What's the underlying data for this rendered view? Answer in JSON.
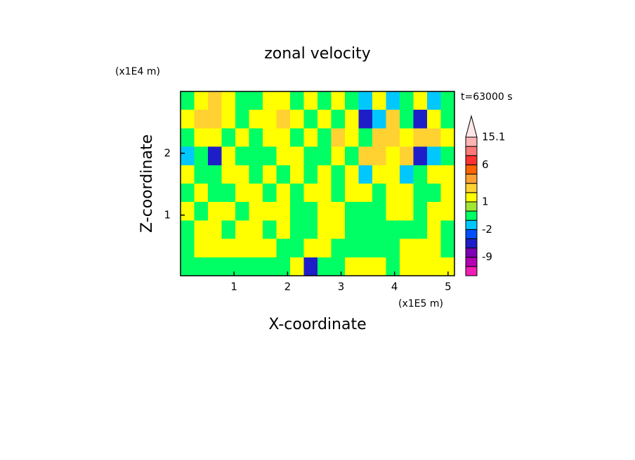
{
  "chart_data": {
    "type": "contour",
    "title": "zonal velocity",
    "subtitle": "t=63000 s",
    "x_label": "X-coordinate",
    "y_label": "Z-coordinate",
    "x_unit": "(x1E5 m)",
    "y_unit": "(x1E4 m)",
    "xlim": [
      0,
      5.12
    ],
    "ylim": [
      0.02,
      3.0
    ],
    "xticks": [
      1,
      2,
      3,
      4,
      5
    ],
    "yticks": [
      1,
      2
    ],
    "levels": [
      -12,
      -9,
      -6,
      -3,
      -2,
      -1,
      0,
      1,
      2,
      3,
      4.5,
      6,
      9,
      12,
      15.1
    ],
    "colors": [
      "#f01eb4",
      "#b400b4",
      "#7d00b4",
      "#1e1ec8",
      "#0050ff",
      "#00c8ff",
      "#00ff64",
      "#a0e632",
      "#ffff00",
      "#ffd232",
      "#ffa032",
      "#ff6400",
      "#ff3232",
      "#ff7878",
      "#ffb4b4",
      "#ffe6e6"
    ],
    "colorbar_ticks": [
      15.1,
      6,
      1,
      -2,
      -9
    ],
    "z": [
      [
        -0.5,
        1.5,
        2.5,
        1.5,
        -0.5,
        -0.5,
        1.5,
        1.5,
        -0.5,
        1.5,
        -0.5,
        1.5,
        -0.5,
        -1.5,
        1.5,
        -1.5,
        -0.5,
        1.5,
        -1.5,
        -0.5
      ],
      [
        1.5,
        2.5,
        2.5,
        1.5,
        -0.5,
        1.5,
        1.5,
        2.5,
        1.5,
        -0.5,
        1.5,
        -0.5,
        1.5,
        -4,
        -1.5,
        2.5,
        -0.5,
        -4,
        1.5,
        -0.5
      ],
      [
        -0.5,
        1.5,
        1.5,
        -0.5,
        1.5,
        -0.5,
        1.5,
        1.5,
        -0.5,
        1.5,
        -0.5,
        2.5,
        1.5,
        -0.5,
        2.5,
        2.5,
        1.5,
        2.5,
        2.5,
        1.5
      ],
      [
        -1.5,
        -0.5,
        -4,
        1.5,
        -0.5,
        -0.5,
        -0.5,
        1.5,
        1.5,
        -0.5,
        -0.5,
        1.5,
        -0.5,
        2.5,
        2.5,
        1.5,
        2.5,
        -4,
        -1.5,
        -0.5
      ],
      [
        1.5,
        -0.5,
        -0.5,
        1.5,
        1.5,
        -0.5,
        1.5,
        -0.5,
        1.5,
        -0.5,
        1.5,
        -0.5,
        1.5,
        -1.5,
        1.5,
        1.5,
        -1.5,
        -0.5,
        1.5,
        1.5
      ],
      [
        -0.5,
        1.5,
        -0.5,
        -0.5,
        1.5,
        1.5,
        -0.5,
        1.5,
        -0.5,
        1.5,
        1.5,
        -0.5,
        1.5,
        1.5,
        -0.5,
        1.5,
        1.5,
        -0.5,
        -0.5,
        1.5
      ],
      [
        1.5,
        -0.5,
        1.5,
        1.5,
        -0.5,
        1.5,
        1.5,
        1.5,
        -0.5,
        -0.5,
        1.5,
        1.5,
        -0.5,
        -0.5,
        -0.5,
        1.5,
        1.5,
        -0.5,
        1.5,
        1.5
      ],
      [
        -0.5,
        1.5,
        1.5,
        -0.5,
        1.5,
        1.5,
        -0.5,
        1.5,
        -0.5,
        -0.5,
        1.5,
        1.5,
        -0.5,
        -0.5,
        -0.5,
        -0.5,
        -0.5,
        -0.5,
        1.5,
        -0.5
      ],
      [
        -0.5,
        1.5,
        1.5,
        1.5,
        1.5,
        1.5,
        1.5,
        -0.5,
        -0.5,
        1.5,
        1.5,
        -0.5,
        -0.5,
        -0.5,
        -0.5,
        -0.5,
        1.5,
        1.5,
        1.5,
        -0.5
      ],
      [
        -0.5,
        -0.5,
        -0.5,
        -0.5,
        -0.5,
        -0.5,
        -0.5,
        -0.5,
        1.5,
        -4,
        -0.5,
        -0.5,
        1.5,
        1.5,
        1.5,
        -0.5,
        1.5,
        1.5,
        1.5,
        1.5
      ]
    ]
  }
}
